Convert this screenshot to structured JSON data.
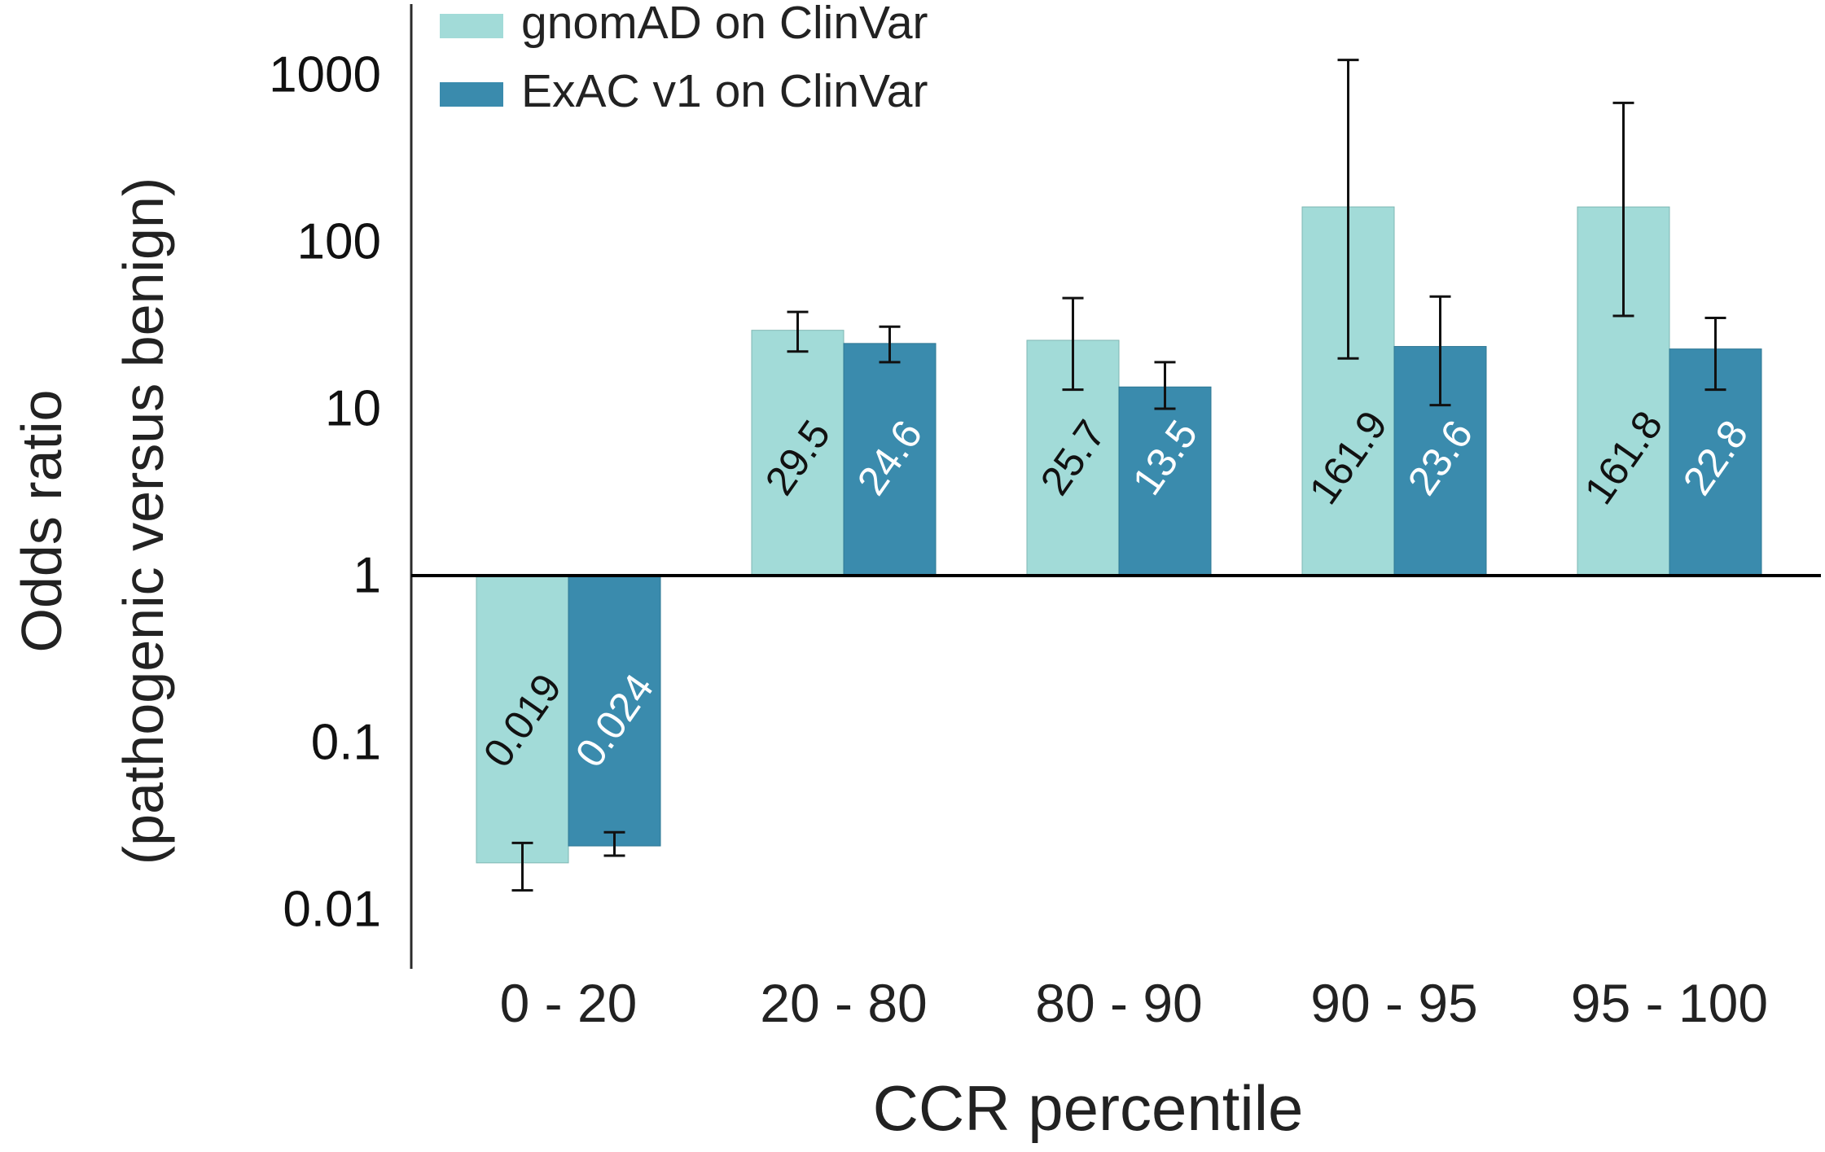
{
  "chart_data": {
    "type": "bar",
    "scale": "log",
    "xlabel": "CCR percentile",
    "ylabel_line1": "Odds ratio",
    "ylabel_line2": "(pathogenic versus benign)",
    "ylim": [
      0.005,
      3000
    ],
    "baseline": 1,
    "yticks": [
      0.01,
      0.1,
      1,
      10,
      100,
      1000
    ],
    "ytick_labels": [
      "0.01",
      "0.1",
      "1",
      "10",
      "100",
      "1000"
    ],
    "categories": [
      "0 - 20",
      "20 - 80",
      "80 - 90",
      "90 - 95",
      "95 - 100"
    ],
    "series": [
      {
        "name": "gnomAD on ClinVar",
        "color": "#a2dbd8",
        "label_color": "#111111",
        "values": [
          0.019,
          29.5,
          25.7,
          161.9,
          161.8
        ],
        "labels": [
          "0.019",
          "29.5",
          "25.7",
          "161.9",
          "161.8"
        ],
        "ci_low": [
          0.013,
          22,
          13,
          20,
          36
        ],
        "ci_high": [
          0.025,
          38,
          46,
          1230,
          680
        ]
      },
      {
        "name": "ExAC v1 on ClinVar",
        "color": "#3a8bad",
        "label_color": "#ffffff",
        "values": [
          0.024,
          24.6,
          13.5,
          23.6,
          22.8
        ],
        "labels": [
          "0.024",
          "24.6",
          "13.5",
          "23.6",
          "22.8"
        ],
        "ci_low": [
          0.021,
          19,
          10,
          10.5,
          13
        ],
        "ci_high": [
          0.029,
          31,
          19,
          47,
          35
        ]
      }
    ],
    "legend_position": "top-left"
  }
}
